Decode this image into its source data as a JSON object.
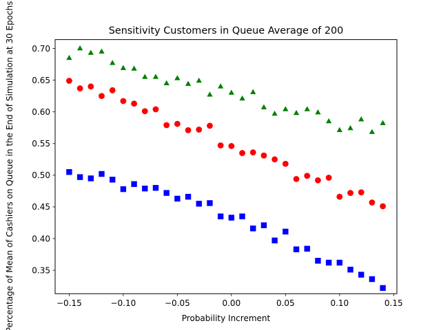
{
  "chart_data": {
    "type": "scatter",
    "title": "Sensitivity Customers in Queue Average of 200",
    "xlabel": "Probability Increment",
    "ylabel": "Percentage of Mean of Cashiers on Queue in the End of Simulation at 30 Epochs",
    "xlim": [
      -0.163,
      0.153
    ],
    "ylim": [
      0.313,
      0.714
    ],
    "xticks": [
      -0.15,
      -0.1,
      -0.05,
      0.0,
      0.05,
      0.1,
      0.15
    ],
    "xtick_labels": [
      "−0.15",
      "−0.10",
      "−0.05",
      "0.00",
      "0.05",
      "0.10",
      "0.15"
    ],
    "yticks": [
      0.35,
      0.4,
      0.45,
      0.5,
      0.55,
      0.6,
      0.65,
      0.7
    ],
    "ytick_labels": [
      "0.35",
      "0.40",
      "0.45",
      "0.50",
      "0.55",
      "0.60",
      "0.65",
      "0.70"
    ],
    "grid": false,
    "x": [
      -0.15,
      -0.14,
      -0.13,
      -0.12,
      -0.11,
      -0.1,
      -0.09,
      -0.08,
      -0.07,
      -0.06,
      -0.05,
      -0.04,
      -0.03,
      -0.02,
      -0.01,
      0.0,
      0.01,
      0.02,
      0.03,
      0.04,
      0.05,
      0.06,
      0.07,
      0.08,
      0.09,
      0.1,
      0.11,
      0.12,
      0.13,
      0.14
    ],
    "series": [
      {
        "marker": "triangle",
        "color": "#008000",
        "values": [
          0.685,
          0.7,
          0.693,
          0.695,
          0.677,
          0.669,
          0.668,
          0.655,
          0.655,
          0.645,
          0.653,
          0.644,
          0.649,
          0.627,
          0.64,
          0.63,
          0.621,
          0.631,
          0.607,
          0.597,
          0.604,
          0.598,
          0.604,
          0.599,
          0.585,
          0.571,
          0.574,
          0.588,
          0.568,
          0.582
        ]
      },
      {
        "marker": "circle",
        "color": "#ff0000",
        "values": [
          0.649,
          0.637,
          0.64,
          0.625,
          0.634,
          0.617,
          0.613,
          0.601,
          0.604,
          0.579,
          0.581,
          0.571,
          0.572,
          0.578,
          0.547,
          0.546,
          0.535,
          0.536,
          0.531,
          0.525,
          0.518,
          0.494,
          0.499,
          0.492,
          0.496,
          0.466,
          0.472,
          0.473,
          0.457,
          0.451
        ]
      },
      {
        "marker": "square",
        "color": "#0000ff",
        "values": [
          0.505,
          0.497,
          0.495,
          0.502,
          0.493,
          0.478,
          0.486,
          0.479,
          0.48,
          0.472,
          0.463,
          0.466,
          0.455,
          0.456,
          0.435,
          0.433,
          0.435,
          0.416,
          0.421,
          0.397,
          0.411,
          0.383,
          0.384,
          0.365,
          0.362,
          0.362,
          0.351,
          0.343,
          0.336,
          0.322
        ]
      }
    ]
  }
}
